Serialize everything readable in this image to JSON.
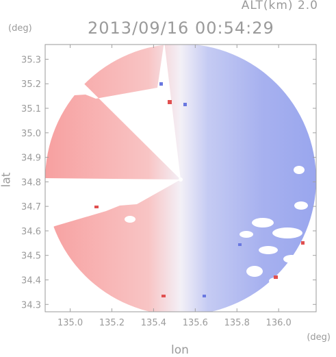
{
  "header": {
    "alt_label": "ALT(km) 2.0",
    "timestamp": "2013/09/16 00:54:29"
  },
  "axes": {
    "y_unit": "(deg)",
    "x_unit": "(deg)",
    "x_label": "lon",
    "y_label": "lat",
    "x_ticks": [
      "135.0",
      "135.2",
      "135.4",
      "135.6",
      "135.8",
      "136.0"
    ],
    "y_ticks": [
      "35.3",
      "35.2",
      "35.1",
      "35.0",
      "34.9",
      "34.8",
      "34.7",
      "34.6",
      "34.5",
      "34.4",
      "34.3"
    ]
  },
  "map": {
    "x_range": [
      134.88,
      136.18
    ],
    "y_range": [
      34.27,
      35.36
    ],
    "center_lon": 135.52,
    "center_lat": 34.82,
    "colors": {
      "approaching": "#8f9cf0",
      "receding": "#f7a3a3",
      "neutral": "#f2f2fa",
      "frame": "#a0a0a0",
      "grid": "#d8d8d8"
    }
  }
}
